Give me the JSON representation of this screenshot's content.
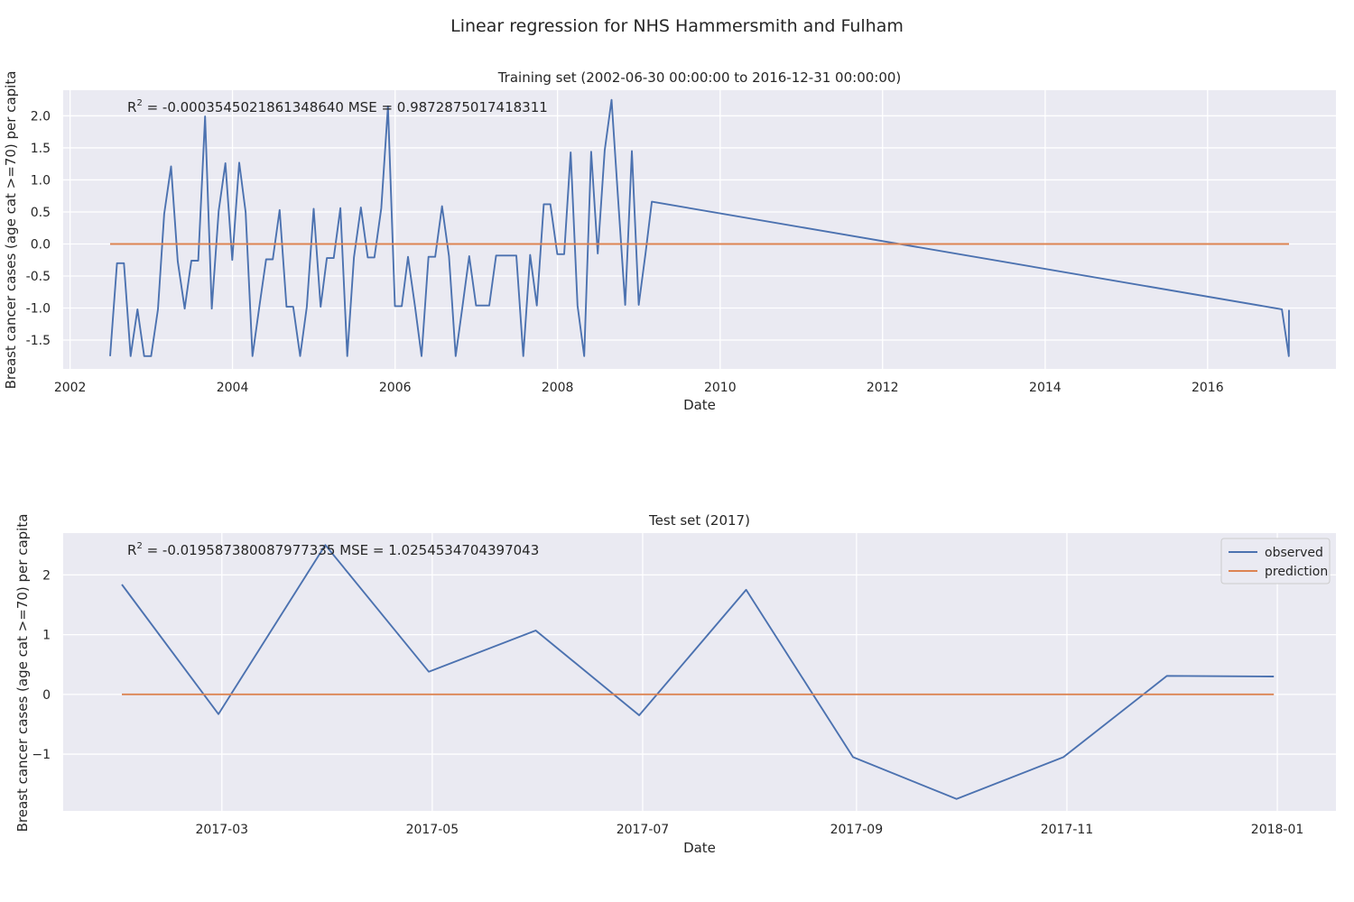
{
  "figure": {
    "suptitle": "Linear regression for NHS Hammersmith and Fulham",
    "colors": {
      "observed": "#4c72b0",
      "prediction": "#dd8452",
      "panel_bg": "#eaeaf2",
      "grid": "#ffffff",
      "text": "#262626"
    }
  },
  "chart_data": [
    {
      "type": "line",
      "title": "Training set (2002-06-30 00:00:00 to 2016-12-31 00:00:00)",
      "xlabel": "Date",
      "ylabel": "Breast cancer cases (age cat >=70) per capita",
      "annotation": {
        "r2_label": "R",
        "r2_sup": "2",
        "r2_value": " = -0.0003545021861348640",
        "mse_label": "  MSE = 0.9872875017418311"
      },
      "xlim": [
        "2001-12-01",
        "2017-07-31"
      ],
      "ylim": [
        -1.95,
        2.4
      ],
      "x_ticks": [
        "2002",
        "2004",
        "2006",
        "2008",
        "2010",
        "2012",
        "2014",
        "2016"
      ],
      "y_ticks": [
        "2.0",
        "1.5",
        "1.0",
        "0.5",
        "0.0",
        "-0.5",
        "-1.0",
        "-1.5"
      ],
      "y_tick_values": [
        2.0,
        1.5,
        1.0,
        0.5,
        0.0,
        -0.5,
        -1.0,
        -1.5
      ],
      "x_tick_values": [
        "2002-01-01",
        "2004-01-01",
        "2006-01-01",
        "2008-01-01",
        "2010-01-01",
        "2012-01-01",
        "2014-01-01",
        "2016-01-01"
      ],
      "grid": true,
      "series": [
        {
          "name": "observed",
          "x": [
            "2002-06-30",
            "2002-07-31",
            "2002-08-31",
            "2002-09-30",
            "2002-10-31",
            "2002-11-30",
            "2002-12-31",
            "2003-01-31",
            "2003-02-28",
            "2003-03-31",
            "2003-04-30",
            "2003-05-31",
            "2003-06-30",
            "2003-07-31",
            "2003-08-31",
            "2003-09-30",
            "2003-10-31",
            "2003-11-30",
            "2003-12-31",
            "2004-01-31",
            "2004-02-29",
            "2004-03-31",
            "2004-04-30",
            "2004-05-31",
            "2004-06-30",
            "2004-07-31",
            "2004-08-31",
            "2004-09-30",
            "2004-10-31",
            "2004-11-30",
            "2004-12-31",
            "2005-01-31",
            "2005-02-28",
            "2005-03-31",
            "2005-04-30",
            "2005-05-31",
            "2005-06-30",
            "2005-07-31",
            "2005-08-31",
            "2005-09-30",
            "2005-10-31",
            "2005-11-30",
            "2005-12-31",
            "2006-01-31",
            "2006-02-28",
            "2006-03-31",
            "2006-04-30",
            "2006-05-31",
            "2006-06-30",
            "2006-07-31",
            "2006-08-31",
            "2006-09-30",
            "2006-10-31",
            "2006-11-30",
            "2006-12-31",
            "2007-01-31",
            "2007-02-28",
            "2007-03-31",
            "2007-04-30",
            "2007-05-31",
            "2007-06-30",
            "2007-07-31",
            "2007-08-31",
            "2007-09-30",
            "2007-10-31",
            "2007-11-30",
            "2007-12-31",
            "2008-01-31",
            "2008-02-29",
            "2008-03-31",
            "2008-04-30",
            "2008-05-31",
            "2008-06-30",
            "2008-07-31",
            "2008-08-31",
            "2008-09-30",
            "2008-10-31",
            "2008-11-30",
            "2008-12-31",
            "2009-01-31",
            "2009-02-28",
            "2016-11-30",
            "2016-12-31",
            "2017-01-01"
          ],
          "values": [
            -1.75,
            -0.3,
            -0.3,
            -1.75,
            -1.02,
            -1.75,
            -1.75,
            -1.02,
            0.47,
            1.21,
            -0.27,
            -1.01,
            -0.26,
            -0.26,
            1.99,
            -1.01,
            0.52,
            1.26,
            -0.25,
            1.27,
            0.5,
            -1.75,
            -1.0,
            -0.24,
            -0.24,
            0.53,
            -0.98,
            -0.98,
            -1.75,
            -0.98,
            0.55,
            -0.98,
            -0.22,
            -0.22,
            0.56,
            -1.75,
            -0.21,
            0.57,
            -0.21,
            -0.21,
            0.56,
            2.15,
            -0.97,
            -0.97,
            -0.2,
            -0.97,
            -1.75,
            -0.2,
            -0.2,
            0.59,
            -0.19,
            -1.75,
            -0.97,
            -0.19,
            -0.96,
            -0.96,
            -0.96,
            -0.18,
            -0.18,
            -0.18,
            -0.18,
            -1.75,
            -0.17,
            -0.96,
            0.62,
            0.62,
            -0.16,
            -0.16,
            1.43,
            -0.96,
            -1.75,
            1.44,
            -0.15,
            1.46,
            2.25,
            0.67,
            -0.95,
            1.45,
            -0.95,
            -0.14,
            0.66,
            -1.02,
            -1.75,
            -1.03
          ]
        },
        {
          "name": "prediction",
          "x": [
            "2002-06-30",
            "2017-01-01"
          ],
          "values": [
            0.0,
            0.0
          ]
        }
      ]
    },
    {
      "type": "line",
      "title": "Test set (2017)",
      "xlabel": "Date",
      "ylabel": "Breast cancer cases (age cat >=70) per capita",
      "annotation": {
        "r2_label": "R",
        "r2_sup": "2",
        "r2_value": " = -0.01958738008797733",
        "mse_label": "5  MSE = 1.0254534704397043"
      },
      "xlim": [
        "2017-01-14",
        "2018-01-18"
      ],
      "ylim": [
        -1.95,
        2.7
      ],
      "x_ticks": [
        "2017-03",
        "2017-05",
        "2017-07",
        "2017-09",
        "2017-11",
        "2018-01"
      ],
      "x_tick_values": [
        "2017-03-01",
        "2017-05-01",
        "2017-07-01",
        "2017-09-01",
        "2017-11-01",
        "2018-01-01"
      ],
      "y_ticks": [
        "2",
        "1",
        "0",
        "−1"
      ],
      "y_tick_values": [
        2,
        1,
        0,
        -1
      ],
      "grid": true,
      "legend": {
        "position": "upper right",
        "entries": [
          "observed",
          "prediction"
        ]
      },
      "series": [
        {
          "name": "observed",
          "x": [
            "2017-01-31",
            "2017-02-28",
            "2017-03-31",
            "2017-04-30",
            "2017-05-31",
            "2017-06-30",
            "2017-07-31",
            "2017-08-31",
            "2017-09-30",
            "2017-10-31",
            "2017-11-30",
            "2017-12-31"
          ],
          "values": [
            1.84,
            -0.33,
            2.5,
            0.38,
            1.07,
            -0.35,
            1.75,
            -1.05,
            -1.75,
            -1.05,
            0.31,
            0.3
          ]
        },
        {
          "name": "prediction",
          "x": [
            "2017-01-31",
            "2017-12-31"
          ],
          "values": [
            0.0,
            0.0
          ]
        }
      ]
    }
  ]
}
